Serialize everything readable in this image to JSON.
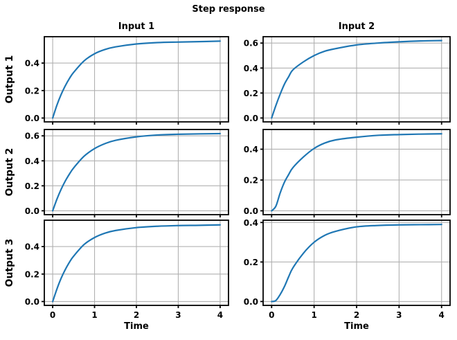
{
  "figure": {
    "suptitle": "Step response",
    "col_titles": [
      "Input 1",
      "Input 2"
    ],
    "row_labels": [
      "Output 1",
      "Output 2",
      "Output 3"
    ],
    "xlabel": "Time",
    "colors": {
      "line": "#1f77b4",
      "grid": "#b0b0b0",
      "spine": "#000000",
      "background": "#ffffff"
    }
  },
  "chart_data": [
    {
      "type": "line",
      "row": "Output 1",
      "col": "Input 1",
      "x": [
        0,
        0.1,
        0.2,
        0.3,
        0.4,
        0.5,
        0.75,
        1,
        1.25,
        1.5,
        2,
        2.5,
        3,
        3.5,
        4
      ],
      "y": [
        0,
        0.093,
        0.17,
        0.234,
        0.288,
        0.332,
        0.416,
        0.468,
        0.499,
        0.518,
        0.539,
        0.549,
        0.553,
        0.556,
        0.56
      ],
      "steady_state": 0.56,
      "xlim": [
        -0.2,
        4.2
      ],
      "ylim": [
        -0.028,
        0.592
      ],
      "xticks": [
        0,
        1,
        2,
        3,
        4
      ],
      "yticks": [
        0,
        0.2,
        0.4
      ],
      "show_x_tick_labels": false,
      "grid": true
    },
    {
      "type": "line",
      "row": "Output 1",
      "col": "Input 2",
      "x": [
        0,
        0.1,
        0.2,
        0.3,
        0.4,
        0.5,
        0.75,
        1,
        1.25,
        1.5,
        2,
        2.5,
        3,
        3.5,
        4
      ],
      "y": [
        0,
        0.1,
        0.19,
        0.27,
        0.33,
        0.385,
        0.45,
        0.5,
        0.535,
        0.555,
        0.585,
        0.6,
        0.61,
        0.617,
        0.62
      ],
      "steady_state": 0.62,
      "xlim": [
        -0.2,
        4.2
      ],
      "ylim": [
        -0.031,
        0.651
      ],
      "xticks": [
        0,
        1,
        2,
        3,
        4
      ],
      "yticks": [
        0,
        0.2,
        0.4,
        0.6
      ],
      "show_x_tick_labels": false,
      "grid": true
    },
    {
      "type": "line",
      "row": "Output 2",
      "col": "Input 1",
      "x": [
        0,
        0.1,
        0.2,
        0.3,
        0.4,
        0.5,
        0.75,
        1,
        1.25,
        1.5,
        2,
        2.5,
        3,
        3.5,
        4
      ],
      "y": [
        0,
        0.092,
        0.171,
        0.238,
        0.294,
        0.343,
        0.437,
        0.498,
        0.538,
        0.564,
        0.592,
        0.607,
        0.613,
        0.616,
        0.618
      ],
      "steady_state": 0.62,
      "xlim": [
        -0.2,
        4.2
      ],
      "ylim": [
        -0.031,
        0.651
      ],
      "xticks": [
        0,
        1,
        2,
        3,
        4
      ],
      "yticks": [
        0,
        0.2,
        0.4,
        0.6
      ],
      "show_x_tick_labels": false,
      "grid": true
    },
    {
      "type": "line",
      "row": "Output 2",
      "col": "Input 2",
      "x": [
        0,
        0.1,
        0.2,
        0.3,
        0.4,
        0.5,
        0.75,
        1,
        1.25,
        1.5,
        2,
        2.5,
        3,
        3.5,
        4
      ],
      "y": [
        0,
        0.03,
        0.115,
        0.185,
        0.235,
        0.28,
        0.35,
        0.405,
        0.44,
        0.46,
        0.478,
        0.49,
        0.495,
        0.498,
        0.5
      ],
      "steady_state": 0.5,
      "xlim": [
        -0.2,
        4.2
      ],
      "ylim": [
        -0.025,
        0.528
      ],
      "xticks": [
        0,
        1,
        2,
        3,
        4
      ],
      "yticks": [
        0,
        0.2,
        0.4
      ],
      "show_x_tick_labels": false,
      "grid": true
    },
    {
      "type": "line",
      "row": "Output 3",
      "col": "Input 1",
      "x": [
        0,
        0.1,
        0.2,
        0.3,
        0.4,
        0.5,
        0.75,
        1,
        1.25,
        1.5,
        2,
        2.5,
        3,
        3.5,
        4
      ],
      "y": [
        0,
        0.09,
        0.168,
        0.232,
        0.286,
        0.33,
        0.415,
        0.466,
        0.498,
        0.517,
        0.538,
        0.548,
        0.553,
        0.555,
        0.558
      ],
      "steady_state": 0.56,
      "xlim": [
        -0.2,
        4.2
      ],
      "ylim": [
        -0.028,
        0.592
      ],
      "xticks": [
        0,
        1,
        2,
        3,
        4
      ],
      "yticks": [
        0,
        0.2,
        0.4
      ],
      "show_x_tick_labels": true,
      "grid": true
    },
    {
      "type": "line",
      "row": "Output 3",
      "col": "Input 2",
      "x": [
        0,
        0.1,
        0.2,
        0.3,
        0.4,
        0.5,
        0.75,
        1,
        1.25,
        1.5,
        2,
        2.5,
        3,
        3.5,
        4
      ],
      "y": [
        0,
        0.005,
        0.035,
        0.075,
        0.125,
        0.17,
        0.245,
        0.3,
        0.335,
        0.355,
        0.378,
        0.385,
        0.388,
        0.389,
        0.39
      ],
      "steady_state": 0.39,
      "xlim": [
        -0.2,
        4.2
      ],
      "ylim": [
        -0.0196,
        0.4116
      ],
      "xticks": [
        0,
        1,
        2,
        3,
        4
      ],
      "yticks": [
        0,
        0.2,
        0.4
      ],
      "show_x_tick_labels": true,
      "grid": true
    }
  ]
}
